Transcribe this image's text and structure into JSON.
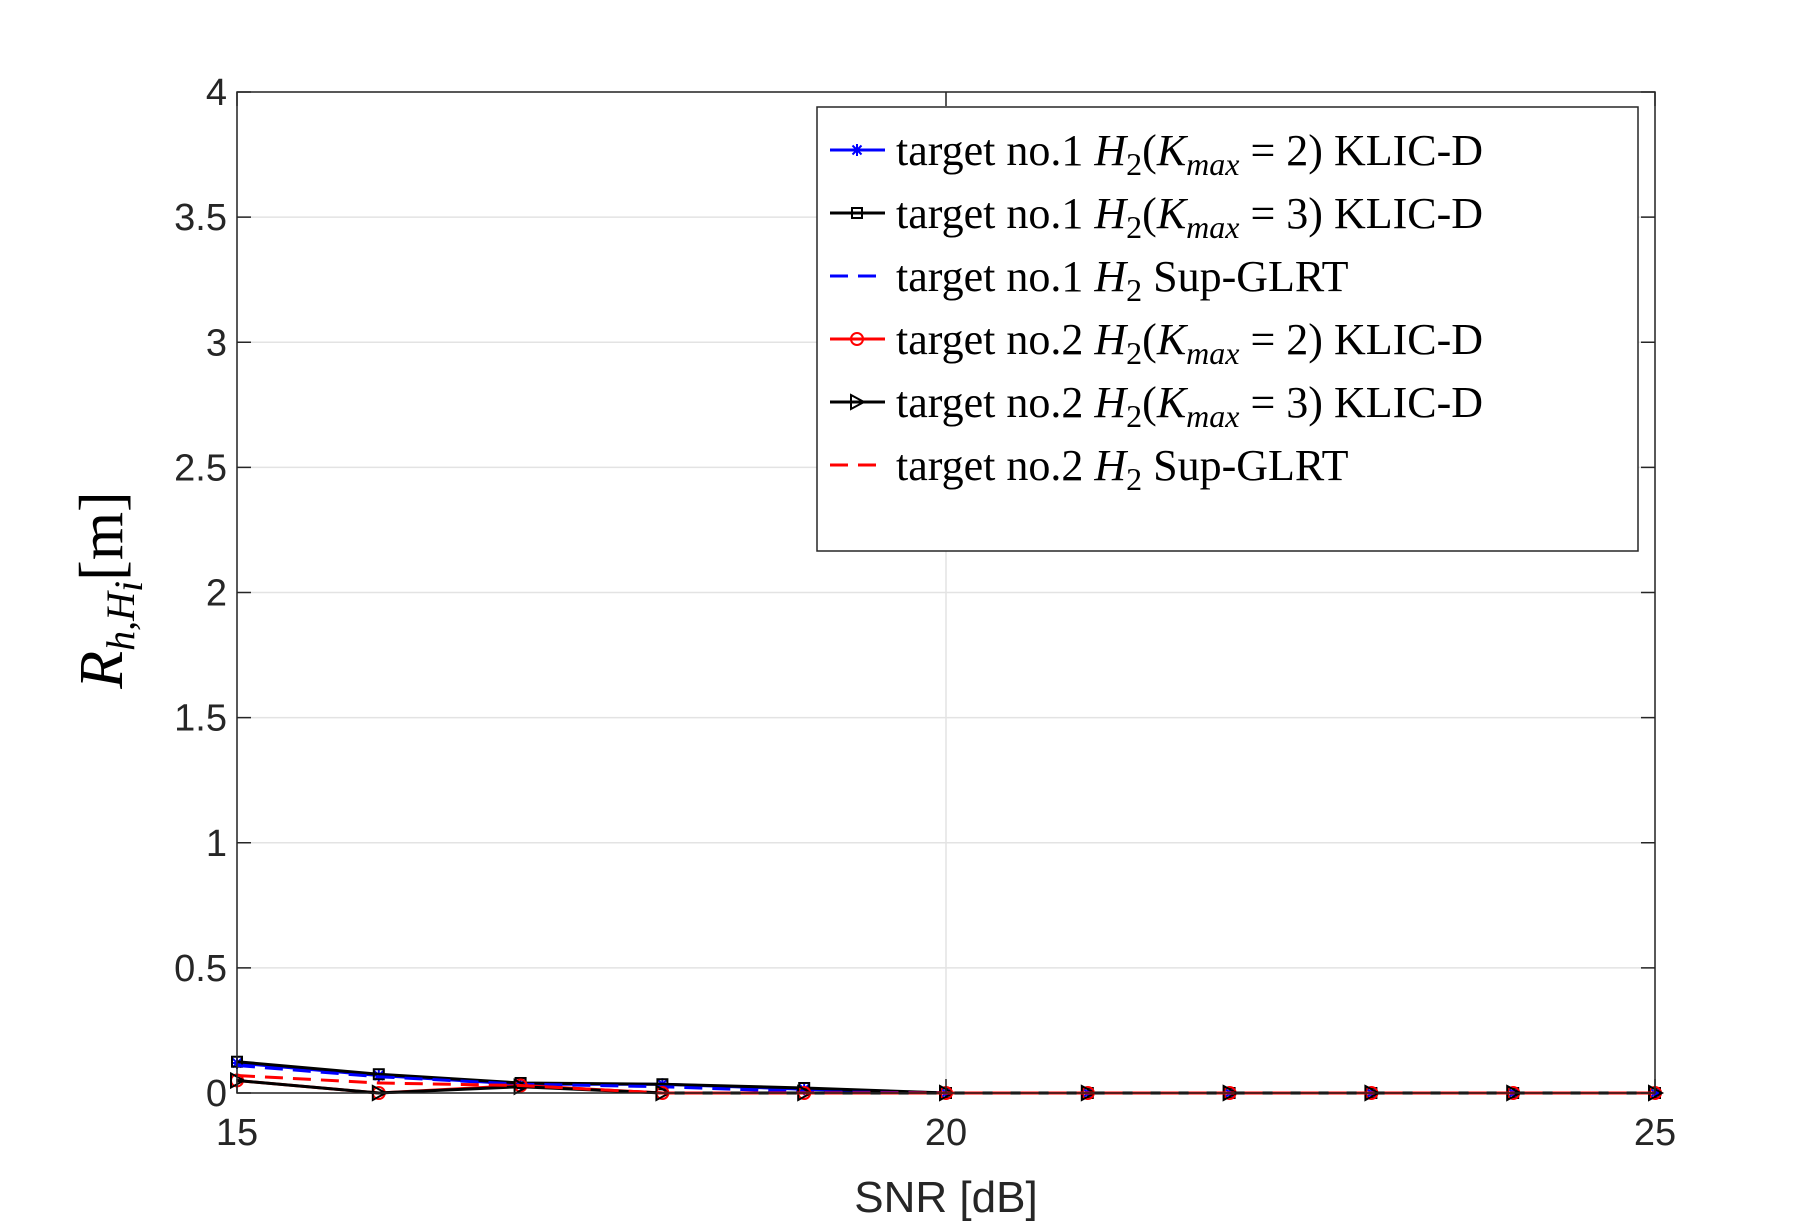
{
  "chart_data": {
    "type": "line",
    "xlabel": "SNR [dB]",
    "ylabel": {
      "main": "R",
      "sub": "h,H",
      "subsub": "i",
      "rest": "[m]"
    },
    "xlim": [
      15,
      25
    ],
    "ylim": [
      0,
      4
    ],
    "xticks": [
      "15",
      "20",
      "25"
    ],
    "yticks": [
      "0",
      "0.5",
      "1",
      "1.5",
      "2",
      "2.5",
      "3",
      "3.5",
      "4"
    ],
    "grid": true,
    "legend_position": "top-right",
    "x": [
      15,
      16,
      17,
      18,
      19,
      20,
      21,
      22,
      23,
      24,
      25
    ],
    "series": [
      {
        "name": "target no.1 H2(Kmax = 2) KLIC-D",
        "legend": {
          "pre": "target no.1 ",
          "var": "H",
          "sub": "2",
          "open": "(",
          "var2": "K",
          "sub2": "max",
          "post": " = 2) KLIC-D"
        },
        "color": "#0000ff",
        "dash": "solid",
        "marker": "star",
        "values": [
          0.12,
          0.07,
          0.035,
          0.035,
          0.015,
          0,
          0,
          0,
          0,
          0,
          0
        ]
      },
      {
        "name": "target no.1 H2(Kmax = 3) KLIC-D",
        "legend": {
          "pre": "target no.1 ",
          "var": "H",
          "sub": "2",
          "open": "(",
          "var2": "K",
          "sub2": "max",
          "post": " = 3) KLIC-D"
        },
        "color": "#000000",
        "dash": "solid",
        "marker": "square",
        "values": [
          0.125,
          0.075,
          0.04,
          0.035,
          0.02,
          0,
          0,
          0,
          0,
          0,
          0
        ]
      },
      {
        "name": "target no.1 H2 Sup-GLRT",
        "legend": {
          "pre": "target no.1 ",
          "var": "H",
          "sub": "2",
          "open": "",
          "var2": "",
          "sub2": "",
          "post": " Sup-GLRT"
        },
        "color": "#0000ff",
        "dash": "dashed",
        "marker": "none",
        "values": [
          0.11,
          0.065,
          0.035,
          0.025,
          0.005,
          0,
          0,
          0,
          0,
          0,
          0
        ]
      },
      {
        "name": "target no.2 H2(Kmax = 2) KLIC-D",
        "legend": {
          "pre": "target no.2 ",
          "var": "H",
          "sub": "2",
          "open": "(",
          "var2": "K",
          "sub2": "max",
          "post": " = 2) KLIC-D"
        },
        "color": "#ff0000",
        "dash": "solid",
        "marker": "circle",
        "values": [
          0.05,
          0,
          0.03,
          0,
          0,
          0,
          0,
          0,
          0,
          0,
          0
        ]
      },
      {
        "name": "target no.2 H2(Kmax = 3) KLIC-D",
        "legend": {
          "pre": "target no.2 ",
          "var": "H",
          "sub": "2",
          "open": "(",
          "var2": "K",
          "sub2": "max",
          "post": " = 3) KLIC-D"
        },
        "color": "#000000",
        "dash": "solid",
        "marker": "triangle-right",
        "values": [
          0.05,
          0,
          0.025,
          0,
          0,
          0,
          0,
          0,
          0,
          0,
          0
        ]
      },
      {
        "name": "target no.2 H2 Sup-GLRT",
        "legend": {
          "pre": "target no.2 ",
          "var": "H",
          "sub": "2",
          "open": "",
          "var2": "",
          "sub2": "",
          "post": " Sup-GLRT"
        },
        "color": "#ff0000",
        "dash": "dashed",
        "marker": "none",
        "values": [
          0.07,
          0.04,
          0.03,
          0,
          0,
          0,
          0,
          0,
          0,
          0,
          0
        ]
      }
    ]
  }
}
